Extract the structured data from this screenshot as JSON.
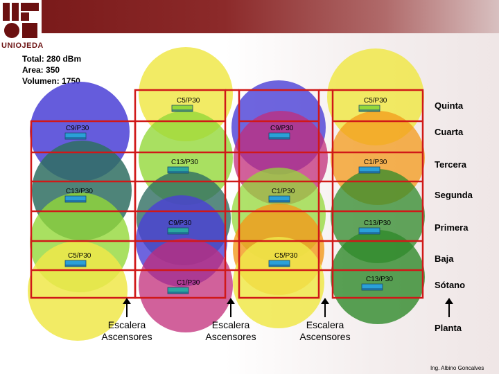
{
  "header": {
    "logo_text": "UNIOJEDA",
    "total": "Total: 280 dBm",
    "area": "Area: 350",
    "volumen": "Volumen: 1750"
  },
  "access_points": [
    {
      "label": "C5/P30"
    },
    {
      "label": "C5/P30"
    },
    {
      "label": "C9/P30"
    },
    {
      "label": "C9/P30"
    },
    {
      "label": "C13/P30"
    },
    {
      "label": "C1/P30"
    },
    {
      "label": "C13/P30"
    },
    {
      "label": "C1/P30"
    },
    {
      "label": "C9/P30"
    },
    {
      "label": "C13/P30"
    },
    {
      "label": "C5/P30"
    },
    {
      "label": "C5/P30"
    },
    {
      "label": "C1/P30"
    },
    {
      "label": "C13/P30"
    }
  ],
  "floors": [
    "Quinta",
    "Cuarta",
    "Tercera",
    "Segunda",
    "Primera",
    "Baja",
    "Sótano",
    "Planta"
  ],
  "stairs": [
    {
      "line1": "Escalera",
      "line2": "Ascensores"
    },
    {
      "line1": "Escalera",
      "line2": "Ascensores"
    },
    {
      "line1": "Escalera",
      "line2": "Ascensores"
    }
  ],
  "author": "Ing. Albino Goncalves",
  "colors": {
    "yellow": "#f0e84a",
    "blue": "#4a3fd6",
    "green": "#94d83a",
    "teal": "#2f6e62",
    "magenta": "#c12c7a",
    "orange": "#f39a1a",
    "darkgreen": "#2f8a2a",
    "grid": "#d01818"
  }
}
